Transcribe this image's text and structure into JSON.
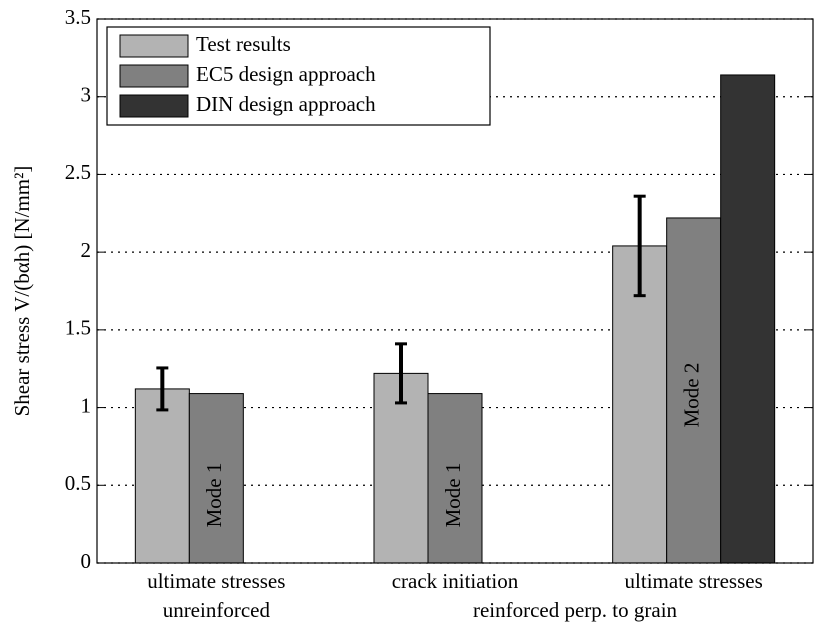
{
  "chart_data": {
    "type": "bar",
    "y_label": "Shear stress V/(bαh) [N/mm²]",
    "categories": [
      "ultimate stresses",
      "crack initiation",
      "ultimate stresses"
    ],
    "category_groups": [
      "unreinforced",
      "reinforced perp. to grain"
    ],
    "series": [
      {
        "name": "Test results",
        "color": "#b3b3b3",
        "values": [
          1.12,
          1.22,
          2.04
        ],
        "errors": [
          0.135,
          0.19,
          0.32
        ]
      },
      {
        "name": "EC5 design approach",
        "color": "#808080",
        "values": [
          1.09,
          1.09,
          2.22
        ]
      },
      {
        "name": "DIN design approach",
        "color": "#333333",
        "values": [
          null,
          null,
          3.14
        ]
      }
    ],
    "annotations": [
      "Mode 1",
      "Mode 1",
      "Mode 2"
    ],
    "ylim": [
      0,
      3.5
    ],
    "yticks": [
      0,
      0.5,
      1,
      1.5,
      2,
      2.5,
      3,
      3.5
    ],
    "grid": true,
    "legend": "upper left"
  }
}
